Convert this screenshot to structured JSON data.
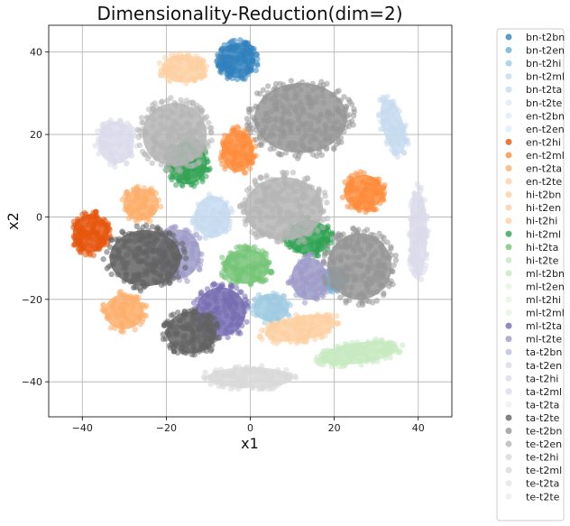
{
  "chart_data": {
    "type": "scatter",
    "title": "Dimensionality-Reduction(dim=2)",
    "xlabel": "x1",
    "ylabel": "x2",
    "xlim": [
      -48,
      48
    ],
    "ylim": [
      -48.5,
      46.5
    ],
    "xticks": [
      -40,
      -20,
      0,
      20,
      40
    ],
    "yticks": [
      -40,
      -20,
      0,
      20,
      40
    ],
    "grid": true,
    "legend_position": "outside-right",
    "series": [
      {
        "name": "bn-t2bn",
        "color": "#3182bd",
        "clusters": [
          {
            "x": -3,
            "y": 38,
            "rx": 5,
            "ry": 5,
            "rot": -45,
            "n": 150
          }
        ]
      },
      {
        "name": "bn-t2en",
        "color": "#6baed6",
        "clusters": [
          {
            "x": 20,
            "y": -15,
            "rx": 3.5,
            "ry": 3.5,
            "rot": 0,
            "n": 25
          }
        ]
      },
      {
        "name": "bn-t2hi",
        "color": "#9ecae1",
        "clusters": [
          {
            "x": 5,
            "y": -22,
            "rx": 5,
            "ry": 4,
            "rot": 0,
            "n": 60
          }
        ]
      },
      {
        "name": "bn-t2ml",
        "color": "#c6dbef",
        "clusters": [
          {
            "x": 34,
            "y": 22,
            "rx": 3,
            "ry": 8,
            "rot": 15,
            "n": 80
          },
          {
            "x": -9,
            "y": 0,
            "rx": 5,
            "ry": 6,
            "rot": 0,
            "n": 70
          }
        ]
      },
      {
        "name": "bn-t2ta",
        "color": "#c6dbef",
        "clusters": []
      },
      {
        "name": "bn-t2te",
        "color": "#deebf7",
        "clusters": []
      },
      {
        "name": "en-t2bn",
        "color": "#deebf7",
        "clusters": []
      },
      {
        "name": "en-t2en",
        "color": "#deebf7",
        "clusters": []
      },
      {
        "name": "en-t2hi",
        "color": "#e6550d",
        "clusters": [
          {
            "x": -38,
            "y": -4,
            "rx": 5,
            "ry": 5.5,
            "rot": 0,
            "n": 130
          }
        ]
      },
      {
        "name": "en-t2ml",
        "color": "#fd8d3c",
        "clusters": [
          {
            "x": -3,
            "y": 16,
            "rx": 4.5,
            "ry": 6,
            "rot": 0,
            "n": 100
          },
          {
            "x": 27,
            "y": 6,
            "rx": 5.5,
            "ry": 5,
            "rot": 0,
            "n": 110
          }
        ]
      },
      {
        "name": "en-t2ta",
        "color": "#fdae6b",
        "clusters": [
          {
            "x": -26,
            "y": 3,
            "rx": 5,
            "ry": 4.5,
            "rot": 0,
            "n": 80
          },
          {
            "x": -30,
            "y": -23,
            "rx": 5.5,
            "ry": 5,
            "rot": 0,
            "n": 80
          }
        ]
      },
      {
        "name": "en-t2te",
        "color": "#fdd0a2",
        "clusters": [
          {
            "x": -16,
            "y": 36,
            "rx": 6,
            "ry": 4,
            "rot": 0,
            "n": 90
          },
          {
            "x": 12,
            "y": -27,
            "rx": 10,
            "ry": 3.5,
            "rot": 10,
            "n": 110
          }
        ]
      },
      {
        "name": "hi-t2bn",
        "color": "#fdd0a2",
        "clusters": []
      },
      {
        "name": "hi-t2en",
        "color": "#fdd0a2",
        "clusters": []
      },
      {
        "name": "hi-t2hi",
        "color": "#fdd0a2",
        "clusters": []
      },
      {
        "name": "hi-t2ml",
        "color": "#31a354",
        "clusters": [
          {
            "x": -15,
            "y": 13,
            "rx": 5.5,
            "ry": 6,
            "rot": 0,
            "n": 110
          },
          {
            "x": 14,
            "y": -5,
            "rx": 6,
            "ry": 5,
            "rot": 0,
            "n": 90
          }
        ]
      },
      {
        "name": "hi-t2ta",
        "color": "#74c476",
        "clusters": [
          {
            "x": -1,
            "y": -12,
            "rx": 6.5,
            "ry": 5,
            "rot": 0,
            "n": 110
          }
        ]
      },
      {
        "name": "hi-t2te",
        "color": "#c7e9c0",
        "clusters": [
          {
            "x": 26,
            "y": -33,
            "rx": 11,
            "ry": 3,
            "rot": 8,
            "n": 120
          }
        ]
      },
      {
        "name": "ml-t2bn",
        "color": "#c7e9c0",
        "clusters": []
      },
      {
        "name": "ml-t2en",
        "color": "#e5f5e0",
        "clusters": []
      },
      {
        "name": "ml-t2hi",
        "color": "#e5f5e0",
        "clusters": []
      },
      {
        "name": "ml-t2ml",
        "color": "#e5f5e0",
        "clusters": []
      },
      {
        "name": "ml-t2ta",
        "color": "#756bb1",
        "clusters": [
          {
            "x": -7,
            "y": -23,
            "rx": 7,
            "ry": 7,
            "rot": 0,
            "n": 120
          }
        ]
      },
      {
        "name": "ml-t2te",
        "color": "#9e9ac8",
        "clusters": [
          {
            "x": -17,
            "y": -9,
            "rx": 6,
            "ry": 7,
            "rot": 0,
            "n": 90
          },
          {
            "x": 14,
            "y": -15,
            "rx": 5,
            "ry": 6,
            "rot": 0,
            "n": 80
          }
        ]
      },
      {
        "name": "ta-t2bn",
        "color": "#bcbddc",
        "clusters": []
      },
      {
        "name": "ta-t2en",
        "color": "#dadaeb",
        "clusters": [
          {
            "x": -32,
            "y": 18,
            "rx": 5,
            "ry": 6,
            "rot": 0,
            "n": 90
          },
          {
            "x": 40,
            "y": -4,
            "rx": 2.5,
            "ry": 12,
            "rot": 0,
            "n": 110
          }
        ]
      },
      {
        "name": "ta-t2hi",
        "color": "#dadaeb",
        "clusters": []
      },
      {
        "name": "ta-t2ml",
        "color": "#dadaeb",
        "clusters": []
      },
      {
        "name": "ta-t2ta",
        "color": "#efedf5",
        "clusters": []
      },
      {
        "name": "ta-t2te",
        "color": "#636363",
        "clusters": [
          {
            "x": -25,
            "y": -10,
            "rx": 10,
            "ry": 8,
            "rot": 0,
            "n": 220
          },
          {
            "x": -14,
            "y": -28,
            "rx": 7,
            "ry": 6,
            "rot": 0,
            "n": 160
          }
        ]
      },
      {
        "name": "te-t2bn",
        "color": "#969696",
        "clusters": [
          {
            "x": 12,
            "y": 24,
            "rx": 13,
            "ry": 10,
            "rot": 0,
            "n": 280
          },
          {
            "x": 26,
            "y": -12,
            "rx": 9,
            "ry": 9.5,
            "rot": 0,
            "n": 240
          }
        ]
      },
      {
        "name": "te-t2en",
        "color": "#b5b5b5",
        "clusters": [
          {
            "x": -18,
            "y": 20,
            "rx": 9,
            "ry": 9,
            "rot": 0,
            "n": 220
          },
          {
            "x": 8,
            "y": 2,
            "rx": 11,
            "ry": 9,
            "rot": 0,
            "n": 240
          }
        ]
      },
      {
        "name": "te-t2hi",
        "color": "#d9d9d9",
        "clusters": [
          {
            "x": 0,
            "y": -39,
            "rx": 12,
            "ry": 3,
            "rot": 0,
            "n": 130
          }
        ]
      },
      {
        "name": "te-t2ml",
        "color": "#d9d9d9",
        "clusters": []
      },
      {
        "name": "te-t2ta",
        "color": "#e5e5e5",
        "clusters": []
      },
      {
        "name": "te-t2te",
        "color": "#eeeeee",
        "clusters": []
      }
    ]
  }
}
